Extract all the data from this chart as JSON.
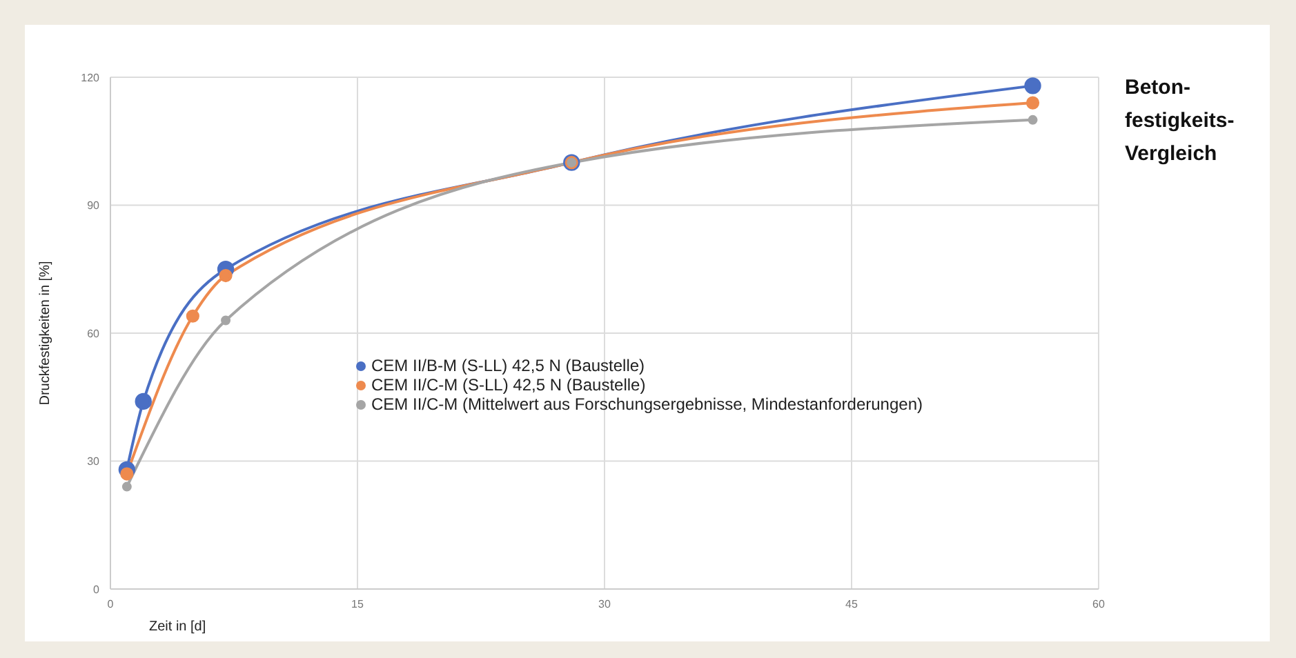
{
  "chart_data": {
    "type": "line",
    "title": "Beton-\nfestigkeits-\nVergleich",
    "xlabel": "Zeit in [d]",
    "ylabel": "Druckfestigkeiten in [%]",
    "xlim": [
      0,
      60
    ],
    "xticks": [
      0,
      15,
      30,
      45,
      60
    ],
    "ylim": [
      0,
      120
    ],
    "yticks": [
      0,
      30,
      60,
      90,
      120
    ],
    "grid": true,
    "legend": "center",
    "marker": "circle",
    "line_style": "solid",
    "series": [
      {
        "name": "CEM II/B-M (S-LL) 42,5 N (Baustelle)",
        "color": "#4a6fc4",
        "x": [
          1,
          2,
          7,
          28,
          56
        ],
        "values": [
          28,
          44,
          75,
          100,
          118
        ]
      },
      {
        "name": "CEM II/C-M (S-LL) 42,5 N (Baustelle)",
        "color": "#ee8a4e",
        "x": [
          1,
          5,
          7,
          28,
          56
        ],
        "values": [
          27,
          64,
          73.5,
          100,
          114
        ]
      },
      {
        "name": "CEM II/C-M (Mittelwert aus Forschungsergebnisse, Mindestanforderungen)",
        "color": "#a5a5a5",
        "x": [
          1,
          7,
          28,
          56
        ],
        "values": [
          24,
          63,
          100,
          110
        ]
      }
    ]
  }
}
